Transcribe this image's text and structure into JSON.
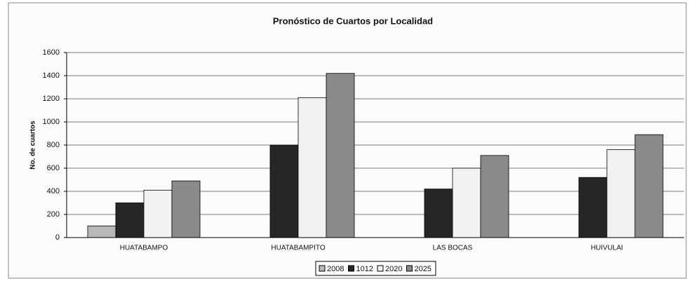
{
  "chart_data": {
    "type": "bar",
    "title": "Pronóstico de Cuartos por Localidad",
    "y_label": "No. de cuartos",
    "categories": [
      "HUATABAMPO",
      "HUATABAMPITO",
      "LAS BOCAS",
      "HUIVULAI"
    ],
    "series": [
      {
        "name": "2008",
        "color": "#b8b8b8",
        "values": [
          100,
          0,
          0,
          0
        ]
      },
      {
        "name": "1012",
        "color": "#262626",
        "values": [
          300,
          800,
          420,
          520
        ]
      },
      {
        "name": "2020",
        "color": "#f2f2f2",
        "values": [
          410,
          1210,
          600,
          760
        ]
      },
      {
        "name": "2025",
        "color": "#8a8a8a",
        "values": [
          490,
          1420,
          710,
          890
        ]
      }
    ],
    "ylim": [
      0,
      1600
    ],
    "yticks": [
      0,
      200,
      400,
      600,
      800,
      1000,
      1200,
      1400,
      1600
    ],
    "grid": true,
    "legend": "bottom"
  }
}
